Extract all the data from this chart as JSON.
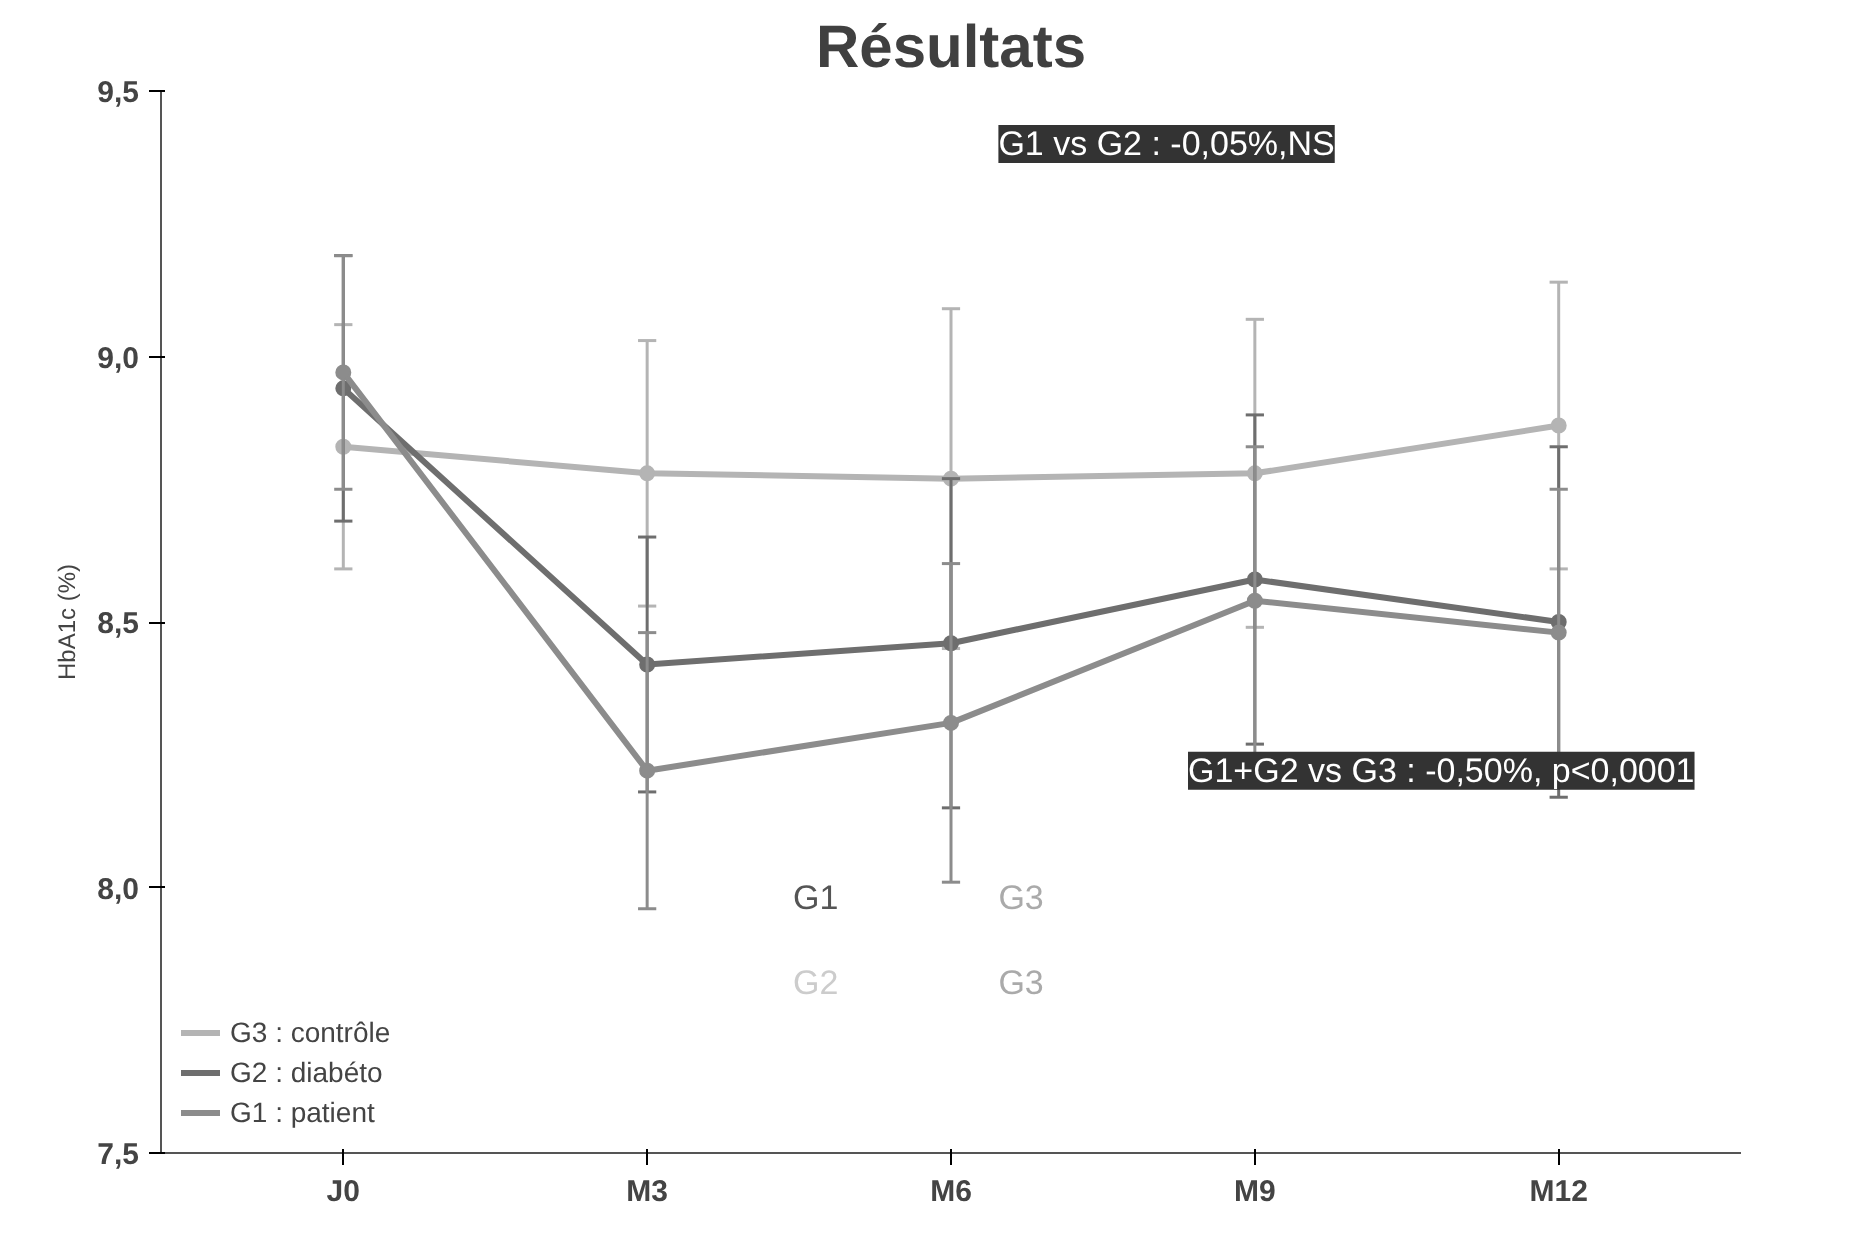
{
  "chart_data": {
    "type": "line",
    "title": "Résultats",
    "ylabel": "HbA1c (%)",
    "categories": [
      "J0",
      "M3",
      "M6",
      "M9",
      "M12"
    ],
    "ylim": [
      7.5,
      9.5
    ],
    "yticks": [
      {
        "value": 7.5,
        "label": "7,5"
      },
      {
        "value": 8.0,
        "label": "8,0"
      },
      {
        "value": 8.5,
        "label": "8,5"
      },
      {
        "value": 9.0,
        "label": "9,0"
      },
      {
        "value": 9.5,
        "label": "9,5"
      }
    ],
    "series": [
      {
        "name": "G3 : contrôle",
        "color": "#b4b4b4",
        "values": [
          8.83,
          8.78,
          8.77,
          8.78,
          8.87
        ],
        "errors": [
          0.23,
          0.25,
          0.32,
          0.29,
          0.27
        ]
      },
      {
        "name": "G2 : diabéto",
        "color": "#6e6e6e",
        "values": [
          8.94,
          8.42,
          8.46,
          8.58,
          8.5
        ],
        "errors": [
          0.25,
          0.24,
          0.31,
          0.31,
          0.33
        ]
      },
      {
        "name": "G1 : patient",
        "color": "#8c8c8c",
        "values": [
          8.97,
          8.22,
          8.31,
          8.54,
          8.48
        ],
        "errors": [
          0.22,
          0.26,
          0.3,
          0.29,
          0.27
        ]
      }
    ],
    "annotations": [
      "G1 vs G2 : -0,05%,NS",
      "G1+G2 vs G3 : -0,50%, p<0,0001",
      "G1",
      "G3",
      "G2",
      "G3"
    ],
    "legend": "bottom left",
    "grid": false,
    "marker": "circle",
    "line_style": "solid"
  }
}
